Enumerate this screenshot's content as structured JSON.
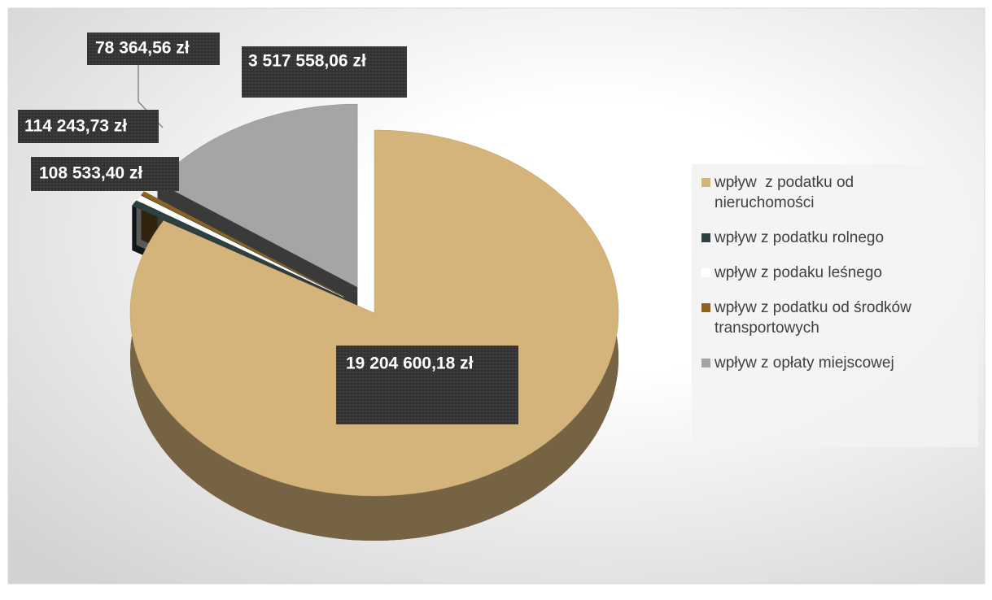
{
  "chart_data": {
    "type": "pie",
    "categories": [
      "wpływ  z podatku od nieruchomości",
      "wpływ z podatku rolnego",
      "wpływ z podaku leśnego",
      "wpływ z podatku od środków transportowych",
      "wpływ z opłaty miejscowej"
    ],
    "values": [
      19204600.18,
      108533.4,
      114243.73,
      78364.56,
      3517558.06
    ],
    "value_labels": [
      "19 204 600,18  zł",
      "108 533,40 zł",
      "114 243,73 zł",
      "78 364,56 zł",
      "3 517 558,06 zł"
    ],
    "colors": [
      "#d4b47a",
      "#2c4242",
      "#ffffff",
      "#8b6424",
      "#a5a5a5"
    ],
    "legend": "right"
  }
}
